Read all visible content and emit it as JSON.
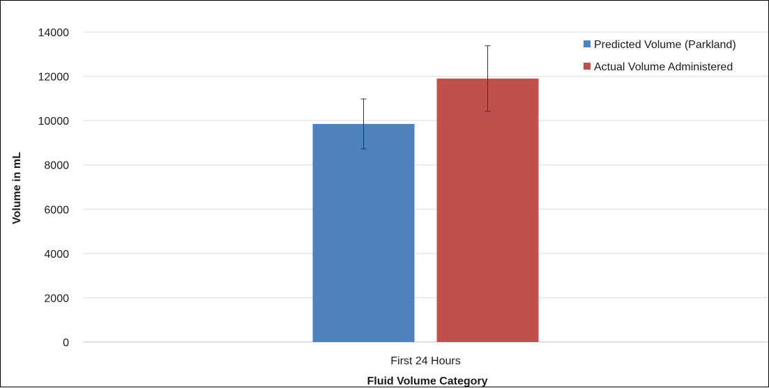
{
  "chart_data": {
    "type": "bar",
    "categories": [
      "First 24 Hours"
    ],
    "series": [
      {
        "name": "Predicted Volume (Parkland)",
        "values": [
          9850
        ],
        "error": [
          1130
        ],
        "color": "#4f81bd"
      },
      {
        "name": "Actual Volume Administered",
        "values": [
          11900
        ],
        "error": [
          1480
        ],
        "color": "#c0504d"
      }
    ],
    "title": "",
    "xlabel": "Fluid Volume Category",
    "ylabel": "Volume in mL",
    "ylim": [
      0,
      14000
    ],
    "yticks": [
      0,
      2000,
      4000,
      6000,
      8000,
      10000,
      12000,
      14000
    ],
    "grid": true,
    "legend": "top-right"
  }
}
